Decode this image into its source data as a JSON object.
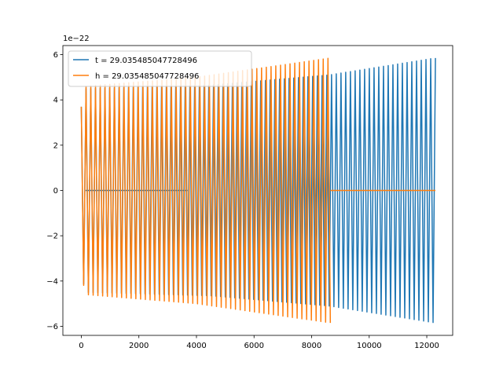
{
  "chart_data": {
    "type": "line",
    "title": "",
    "xlabel": "",
    "ylabel": "",
    "offset_text": "1e−22",
    "xlim": [
      -640,
      12900
    ],
    "ylim": [
      -6.4,
      6.4
    ],
    "xticks": [
      0,
      2000,
      4000,
      6000,
      8000,
      10000,
      12000
    ],
    "xtick_labels": [
      "0",
      "2000",
      "4000",
      "6000",
      "8000",
      "10000",
      "12000"
    ],
    "yticks": [
      -6,
      -4,
      -2,
      0,
      2,
      4,
      6
    ],
    "ytick_labels": [
      "−6",
      "−4",
      "−2",
      "0",
      "2",
      "4",
      "6"
    ],
    "grid": false,
    "legend_position": "top-left",
    "series": [
      {
        "name": "t = 29.035485047728496",
        "color": "#1f77b4",
        "signal": "oscillating",
        "x_range": [
          0,
          12300
        ],
        "amplitude": [
          {
            "x": 0,
            "y": 3.7
          },
          {
            "x": 150,
            "y": 4.5
          },
          {
            "x": 4500,
            "y": 4.65
          },
          {
            "x": 8600,
            "y": 5.1
          },
          {
            "x": 12300,
            "y": 5.85
          }
        ],
        "flat_segments": [
          {
            "x_start": 150,
            "x_end": 3700,
            "y": 0
          }
        ]
      },
      {
        "name": "h = 29.035485047728496",
        "color": "#ff7f0e",
        "signal": "oscillating",
        "x_range": [
          0,
          8650
        ],
        "amplitude": [
          {
            "x": 0,
            "y": 3.7
          },
          {
            "x": 150,
            "y": 4.6
          },
          {
            "x": 4000,
            "y": 5.0
          },
          {
            "x": 8650,
            "y": 5.85
          }
        ],
        "flat_segments": [
          {
            "x_start": 8650,
            "x_end": 12300,
            "y": 0
          }
        ]
      }
    ]
  }
}
